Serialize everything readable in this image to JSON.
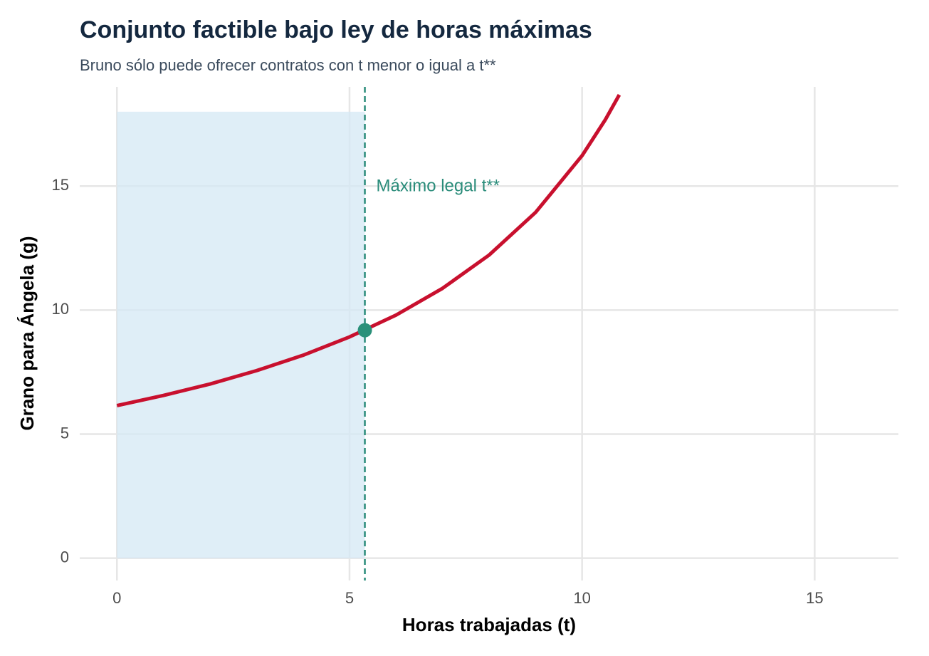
{
  "chart_data": {
    "type": "line",
    "title": "Conjunto factible bajo ley de horas máximas",
    "subtitle": "Bruno sólo puede ofrecer contratos con t menor o igual a t**",
    "x_label": "Horas trabajadas (t)",
    "y_label": "Grano para Ángela (g)",
    "x": [
      0,
      1,
      2,
      3,
      4,
      5,
      6,
      7,
      8,
      9,
      10,
      10.5,
      10.8
    ],
    "values": [
      6.15,
      6.56,
      7.02,
      7.56,
      8.18,
      8.92,
      9.8,
      10.88,
      12.22,
      13.94,
      16.23,
      17.68,
      18.68
    ],
    "color": "#c8102e",
    "region": {
      "xlim": [
        0,
        5.33
      ],
      "ylim": [
        0,
        18
      ],
      "color": "#d4e8f4"
    },
    "vline": {
      "x": 5.33,
      "color": "#2a8c7a",
      "label": "Máximo legal t**"
    },
    "point": {
      "x": 5.33,
      "y": 9.19,
      "color": "#2a9079"
    },
    "xlim": [
      -0.8,
      16.8
    ],
    "ylim": [
      -0.9,
      19
    ],
    "xticks": [
      0,
      5,
      10,
      15
    ],
    "yticks": [
      0,
      5,
      10,
      15
    ],
    "grid": true
  }
}
